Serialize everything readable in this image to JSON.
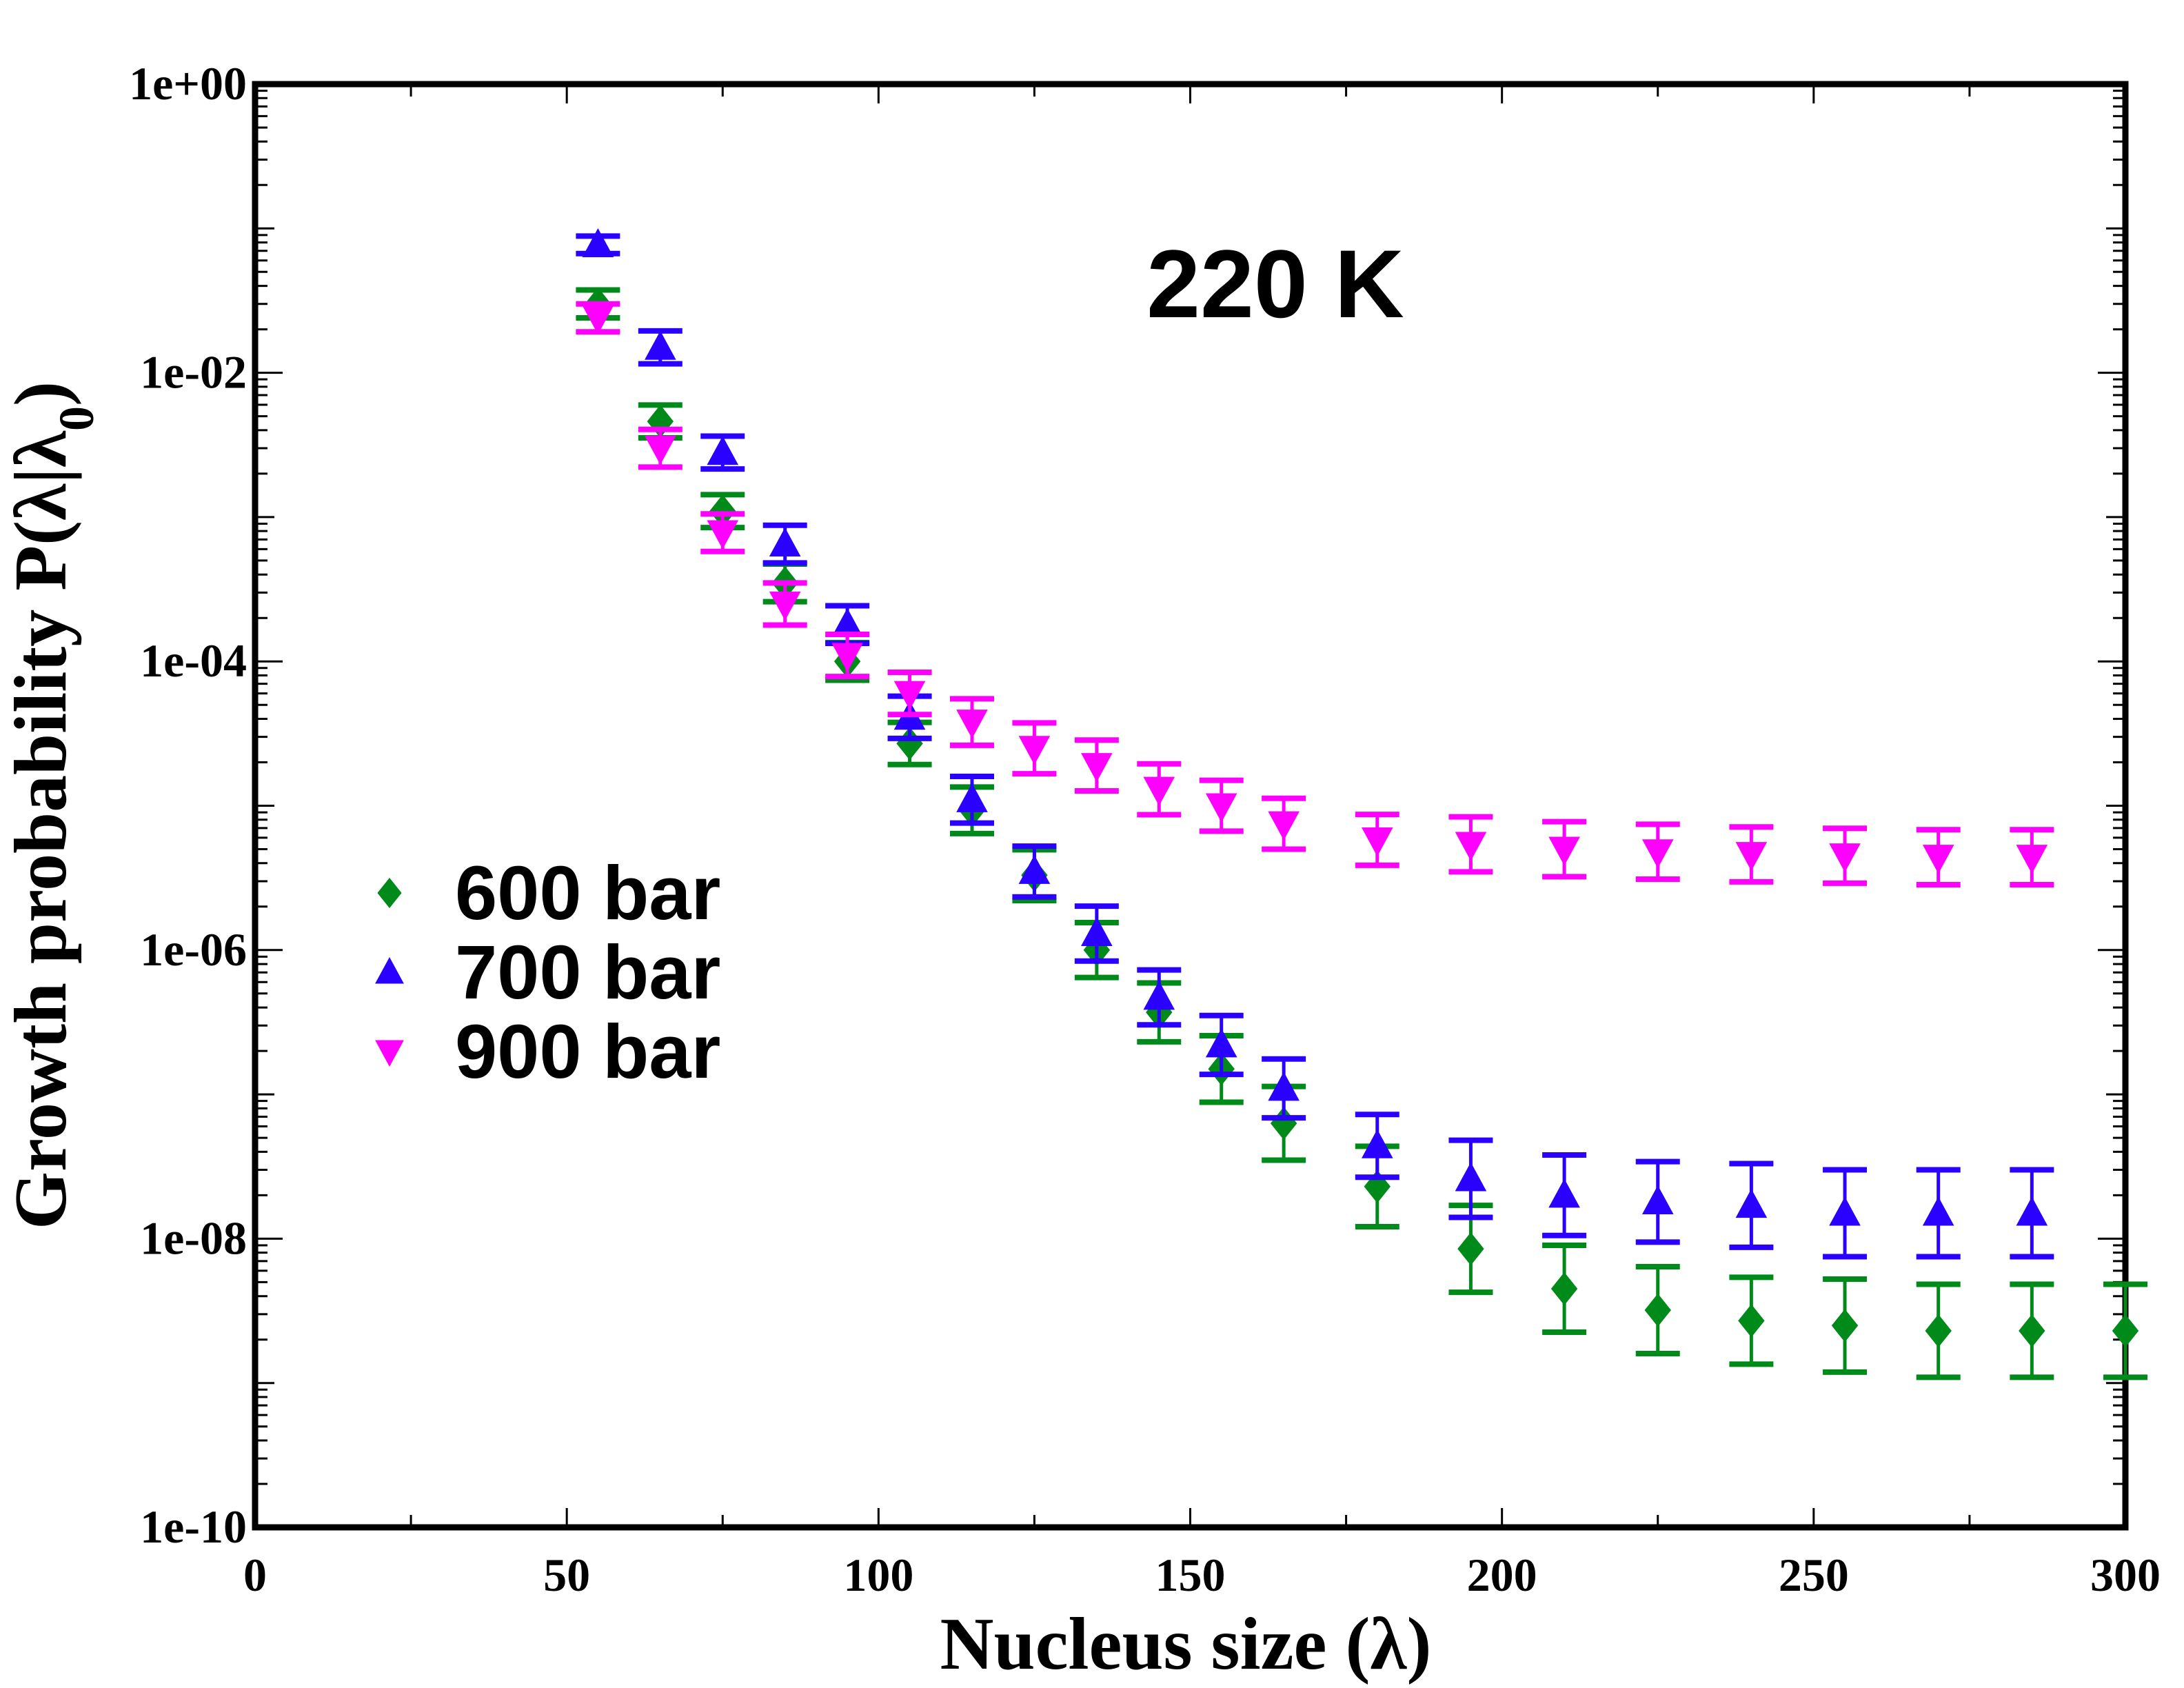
{
  "chart_data": {
    "type": "scatter",
    "title": "",
    "annotation": "220 K",
    "xlabel": "Nucleus size (λ)",
    "ylabel_main": "Growth probability P(λ|λ",
    "ylabel_sub": "0",
    "ylabel_end": ")",
    "xlim": [
      0,
      300
    ],
    "ylim": [
      1e-10,
      1
    ],
    "yscale": "log",
    "x_ticks": [
      0,
      50,
      100,
      150,
      200,
      250,
      300
    ],
    "x_tick_labels": [
      "0",
      "50",
      "100",
      "150",
      "200",
      "250",
      "300"
    ],
    "y_ticks": [
      1,
      0.01,
      0.0001,
      1e-06,
      1e-08,
      1e-10
    ],
    "y_tick_labels": [
      "1e+00",
      "1e-02",
      "1e-04",
      "1e-06",
      "1e-08",
      "1e-10"
    ],
    "grid": false,
    "legend_position": "left-middle",
    "series": [
      {
        "name": "600 bar",
        "color": "#008a1a",
        "marker": "diamond",
        "x": [
          55,
          65,
          75,
          85,
          95,
          105,
          115,
          125,
          135,
          145,
          155,
          165,
          180,
          195,
          210,
          225,
          240,
          255,
          270,
          285,
          300
        ],
        "y": [
          0.03,
          0.0046,
          0.0011,
          0.00035,
          0.0001,
          2.7e-05,
          9.3e-06,
          3.3e-06,
          1e-06,
          3.7e-07,
          1.5e-07,
          6.3e-08,
          2.3e-08,
          8.5e-09,
          4.5e-09,
          3.2e-09,
          2.7e-09,
          2.5e-09,
          2.3e-09,
          2.3e-09,
          2.3e-09
        ],
        "err_factor": [
          1.25,
          1.3,
          1.3,
          1.35,
          1.35,
          1.4,
          1.45,
          1.5,
          1.55,
          1.6,
          1.7,
          1.8,
          1.9,
          2.0,
          2.0,
          2.0,
          2.0,
          2.1,
          2.1,
          2.1,
          2.1
        ]
      },
      {
        "name": "700 bar",
        "color": "#2a00ff",
        "marker": "triangle-up",
        "x": [
          55,
          65,
          75,
          85,
          95,
          105,
          115,
          125,
          135,
          145,
          155,
          165,
          180,
          195,
          210,
          225,
          240,
          255,
          270,
          285
        ],
        "y": [
          0.077,
          0.015,
          0.0028,
          0.00065,
          0.00018,
          4.1e-05,
          1.1e-05,
          3.5e-06,
          1.3e-06,
          4.7e-07,
          2.2e-07,
          1.1e-07,
          4.4e-08,
          2.6e-08,
          2e-08,
          1.8e-08,
          1.7e-08,
          1.5e-08,
          1.5e-08,
          1.5e-08
        ],
        "err_factor": [
          1.15,
          1.3,
          1.3,
          1.35,
          1.35,
          1.4,
          1.45,
          1.5,
          1.55,
          1.55,
          1.6,
          1.6,
          1.65,
          1.85,
          1.9,
          1.9,
          1.95,
          2.0,
          2.0,
          2.0
        ]
      },
      {
        "name": "900 bar",
        "color": "#ff00ff",
        "marker": "triangle-down",
        "x": [
          55,
          65,
          75,
          85,
          95,
          105,
          115,
          125,
          135,
          145,
          155,
          165,
          180,
          195,
          210,
          225,
          240,
          255,
          270,
          285
        ],
        "y": [
          0.024,
          0.003,
          0.00078,
          0.00025,
          0.00011,
          6e-05,
          3.8e-05,
          2.5e-05,
          1.9e-05,
          1.3e-05,
          1e-05,
          7.5e-06,
          5.8e-06,
          5.4e-06,
          5e-06,
          4.8e-06,
          4.6e-06,
          4.5e-06,
          4.4e-06,
          4.4e-06
        ],
        "err_factor": [
          1.25,
          1.35,
          1.35,
          1.4,
          1.4,
          1.4,
          1.45,
          1.5,
          1.5,
          1.5,
          1.5,
          1.5,
          1.5,
          1.55,
          1.55,
          1.55,
          1.55,
          1.55,
          1.55,
          1.55
        ]
      }
    ]
  }
}
